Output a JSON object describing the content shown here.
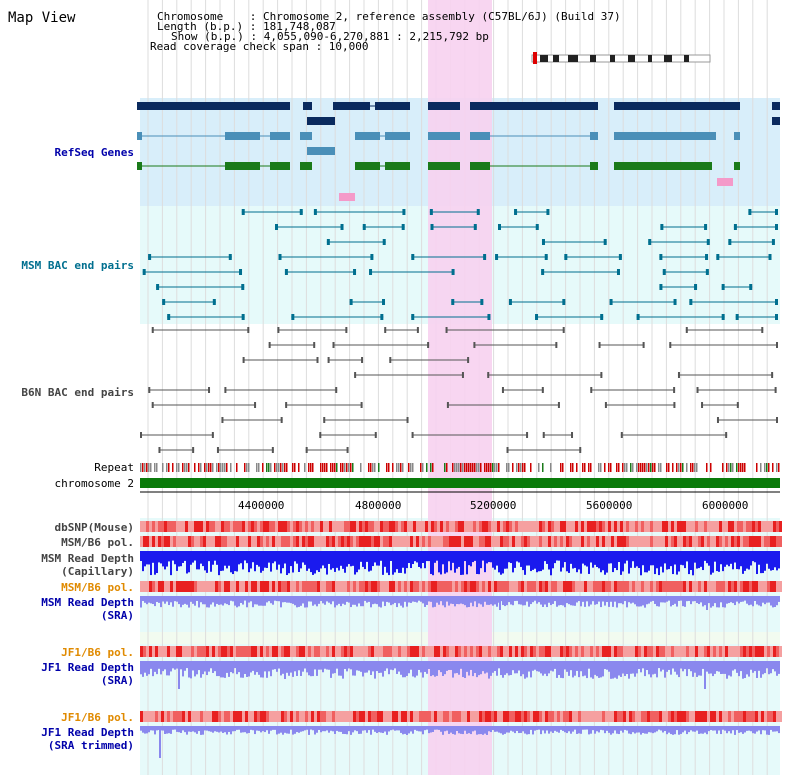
{
  "title": "Map View",
  "info": {
    "line1": "Chromosome    : Chromosome 2, reference assembly (C57BL/6J) (Build 37)",
    "line2": "Length (b.p.) : 181,748,087",
    "line3": "Show (b.p.) : 4,055,090-6,270,881 : 2,215,792 bp",
    "line4": "Read coverage check span : 10,000"
  },
  "tracks": {
    "refseq": "RefSeq Genes",
    "msm_bac": "MSM BAC end pairs",
    "b6n_bac": "B6N BAC end pairs",
    "repeat": "Repeat",
    "chromosome": "chromosome 2",
    "dbsnp": "dbSNP(Mouse)",
    "msm_b6_pol": "MSM/B6 pol.",
    "msm_depth_cap_1": "MSM Read Depth",
    "msm_depth_cap_2": "(Capillary)",
    "msm_b6_pol2": "MSM/B6 pol.",
    "msm_depth_sra_1": "MSM Read Depth",
    "msm_depth_sra_2": "(SRA)",
    "jf1_b6_pol": "JF1/B6 pol.",
    "jf1_depth_sra_1": "JF1 Read Depth",
    "jf1_depth_sra_2": "(SRA)",
    "jf1_b6_pol2": "JF1/B6 pol.",
    "jf1_depth_trim_1": "JF1 Read Depth",
    "jf1_depth_trim_2": "(SRA trimmed)"
  },
  "axis": {
    "ticks": [
      "4400000",
      "4800000",
      "5200000",
      "5600000",
      "6000000"
    ]
  },
  "colors": {
    "navy": "#0a2a5e",
    "refseq_blue": "#0000aa",
    "gene_mid": "#4a8fb8",
    "gene_green": "#1a7a1a",
    "teal": "#006f8f",
    "gray_label": "#444444",
    "orange": "#e08a00",
    "highlight": "#f7d2ef",
    "light_blue_bg": "#d8eefa",
    "light_cyan_bg": "#e6fafa",
    "depth_blue": "#1a1aee",
    "depth_lavender": "#8a88ee",
    "pol_red": "#e83030"
  }
}
